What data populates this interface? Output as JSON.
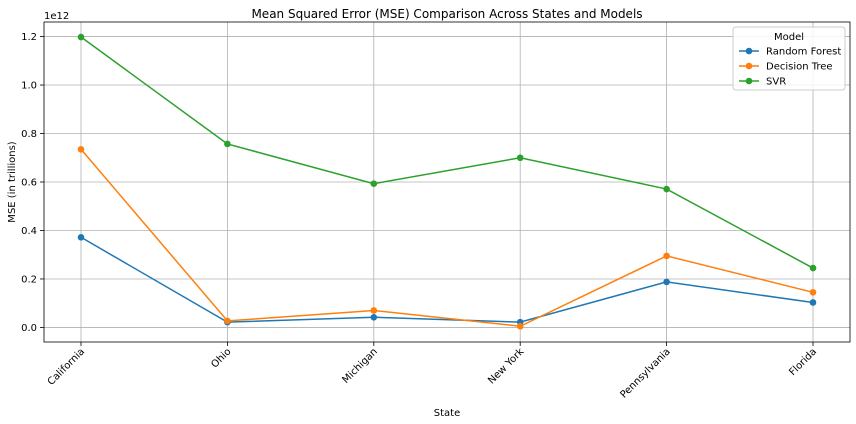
{
  "chart_data": {
    "type": "line",
    "title": "Mean Squared Error (MSE) Comparison Across States and Models",
    "xlabel": "State",
    "ylabel": "MSE (in trillions)",
    "y_offset_label": "1e12",
    "categories": [
      "California",
      "Ohio",
      "Michigan",
      "New York",
      "Pennsylvania",
      "Florida"
    ],
    "ylim": [
      -0.06,
      1.26
    ],
    "yticks": [
      0.0,
      0.2,
      0.4,
      0.6,
      0.8,
      1.0,
      1.2
    ],
    "ytick_labels": [
      "0.0",
      "0.2",
      "0.4",
      "0.6",
      "0.8",
      "1.0",
      "1.2"
    ],
    "grid": true,
    "legend": {
      "title": "Model",
      "position": "top-right"
    },
    "series": [
      {
        "name": "Random Forest",
        "color": "#1f77b4",
        "values": [
          0.372,
          0.022,
          0.042,
          0.022,
          0.188,
          0.103
        ]
      },
      {
        "name": "Decision Tree",
        "color": "#ff7f0e",
        "values": [
          0.735,
          0.027,
          0.07,
          0.005,
          0.295,
          0.145
        ]
      },
      {
        "name": "SVR",
        "color": "#2ca02c",
        "values": [
          1.198,
          0.757,
          0.593,
          0.7,
          0.571,
          0.245
        ]
      }
    ]
  }
}
